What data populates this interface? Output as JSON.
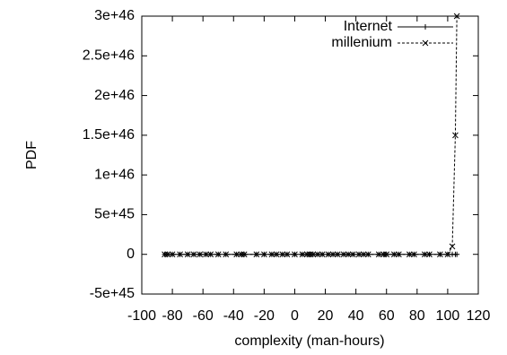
{
  "chart_data": {
    "type": "line",
    "x_label": "complexity (man-hours)",
    "y_label": "PDF",
    "x": [
      -85,
      -83,
      -80,
      -75,
      -70,
      -66,
      -62,
      -58,
      -55,
      -50,
      -45,
      -38,
      -35,
      -33,
      -25,
      -20,
      -15,
      -12,
      -8,
      -5,
      0,
      5,
      8,
      10,
      12,
      15,
      18,
      22,
      25,
      28,
      32,
      35,
      38,
      42,
      45,
      48,
      55,
      58,
      60,
      65,
      68,
      75,
      78,
      85,
      88,
      95,
      100,
      103,
      105,
      106
    ],
    "series": [
      {
        "name": "Internet",
        "color": "#000000",
        "dash": false,
        "marker": "plus",
        "values": [
          0,
          0,
          0,
          0,
          0,
          0,
          0,
          0,
          0,
          0,
          0,
          0,
          0,
          0,
          0,
          0,
          0,
          0,
          0,
          0,
          0,
          0,
          0,
          0,
          0,
          0,
          0,
          0,
          0,
          0,
          0,
          0,
          0,
          0,
          0,
          0,
          0,
          0,
          0,
          0,
          0,
          0,
          0,
          0,
          0,
          0,
          0,
          0,
          0,
          0
        ]
      },
      {
        "name": "millenium",
        "color": "#000000",
        "dash": true,
        "marker": "cross",
        "values": [
          0,
          0,
          0,
          0,
          0,
          0,
          0,
          0,
          0,
          0,
          0,
          0,
          0,
          0,
          0,
          0,
          0,
          0,
          0,
          0,
          0,
          0,
          0,
          0,
          0,
          0,
          0,
          0,
          0,
          0,
          0,
          0,
          0,
          0,
          0,
          0,
          0,
          0,
          0,
          0,
          0,
          0,
          0,
          0,
          0,
          0,
          0,
          1e+45,
          1.5e+46,
          3e+46
        ]
      }
    ],
    "xlim": [
      -100,
      120
    ],
    "xticks": [
      -100,
      -80,
      -60,
      -40,
      -20,
      0,
      20,
      40,
      60,
      80,
      100,
      120
    ],
    "ylim": [
      -5e+45,
      3e+46
    ],
    "yticks": [
      {
        "value": -5e+45,
        "label": "-5e+45"
      },
      0,
      {
        "value": 5e+45,
        "label": "5e+45"
      },
      {
        "value": 1e+46,
        "label": "1e+46"
      },
      {
        "value": 1.5e+46,
        "label": "1.5e+46"
      },
      {
        "value": 2e+46,
        "label": "2e+46"
      },
      {
        "value": 2.5e+46,
        "label": "2.5e+46"
      },
      {
        "value": 3e+46,
        "label": "3e+46"
      }
    ],
    "grid": false,
    "legend": "top-right"
  }
}
